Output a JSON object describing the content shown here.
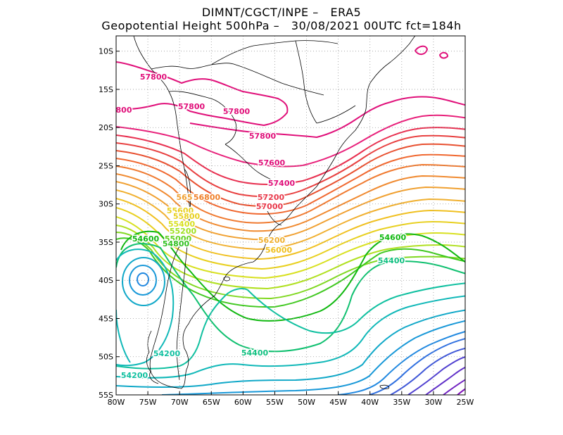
{
  "title": {
    "line1": "DIMNT/CGCT/INPE –   ERA5",
    "line2": "Geopotential Height 500hPa –   30/08/2021 00UTC fct=184h"
  },
  "axes": {
    "lon_ticks": [
      "80W",
      "75W",
      "70W",
      "65W",
      "60W",
      "55W",
      "50W",
      "45W",
      "40W",
      "35W",
      "30W",
      "25W"
    ],
    "lat_ticks": [
      "10S",
      "15S",
      "20S",
      "25S",
      "30S",
      "35S",
      "40S",
      "45S",
      "50S",
      "55S"
    ]
  },
  "contour_labels": [
    {
      "text": "57800",
      "color": "#e0107a"
    },
    {
      "text": "57800",
      "color": "#e0107a"
    },
    {
      "text": "57800",
      "color": "#e0107a"
    },
    {
      "text": "57800",
      "color": "#e0107a"
    },
    {
      "text": "800",
      "color": "#e0107a"
    },
    {
      "text": "57600",
      "color": "#e0107a"
    },
    {
      "text": "57400",
      "color": "#e0107a"
    },
    {
      "text": "57200",
      "color": "#e8384a"
    },
    {
      "text": "57000",
      "color": "#e8384a"
    },
    {
      "text": "56800",
      "color": "#f0802a"
    },
    {
      "text": "565",
      "color": "#f0a030"
    },
    {
      "text": "56200",
      "color": "#f0b030"
    },
    {
      "text": "56000",
      "color": "#f0c020"
    },
    {
      "text": "55600",
      "color": "#e8d020"
    },
    {
      "text": "55800",
      "color": "#e8d020"
    },
    {
      "text": "55400",
      "color": "#d8e020"
    },
    {
      "text": "55200",
      "color": "#a0e020"
    },
    {
      "text": "55000",
      "color": "#60d020"
    },
    {
      "text": "54800",
      "color": "#30c020"
    },
    {
      "text": "54600",
      "color": "#10b810"
    },
    {
      "text": "54600",
      "color": "#10b810"
    },
    {
      "text": "54400",
      "color": "#10c080"
    },
    {
      "text": "54400",
      "color": "#10c080"
    },
    {
      "text": "54200",
      "color": "#10c0a0"
    },
    {
      "text": "54200",
      "color": "#10c0a0"
    }
  ],
  "colors": {
    "frame": "#000000",
    "grid": "#999999",
    "coast": "#000000"
  }
}
